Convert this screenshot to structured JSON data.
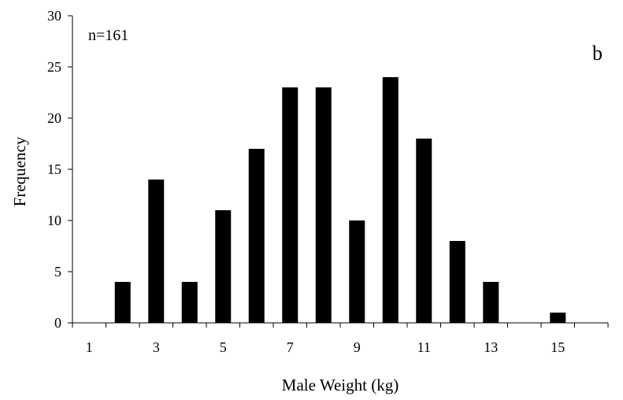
{
  "chart_data": {
    "type": "bar",
    "annotation": "n=161",
    "panel_label": "b",
    "xlabel": "Male Weight (kg)",
    "ylabel": "Frequency",
    "x": [
      2,
      3,
      4,
      5,
      6,
      7,
      8,
      9,
      10,
      11,
      12,
      13,
      15
    ],
    "values": [
      4,
      14,
      4,
      11,
      17,
      23,
      23,
      10,
      24,
      18,
      8,
      4,
      1
    ],
    "xlim": [
      0.5,
      16.5
    ],
    "ylim": [
      0,
      30
    ],
    "x_tick_labels": [
      "1",
      "3",
      "5",
      "7",
      "9",
      "11",
      "13",
      "15"
    ],
    "y_tick_labels": [
      "0",
      "5",
      "10",
      "15",
      "20",
      "25",
      "30"
    ],
    "bar_color": "#000000",
    "grid": false,
    "legend": "none"
  }
}
